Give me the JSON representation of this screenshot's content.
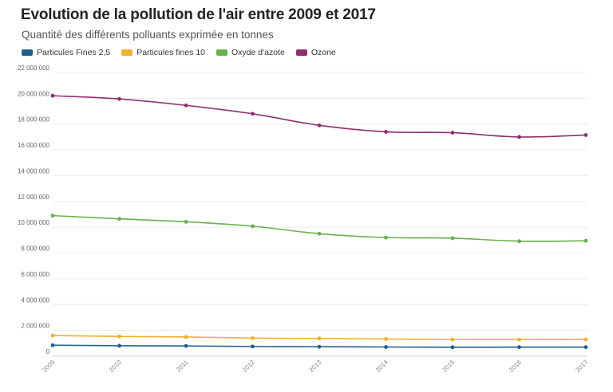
{
  "header": {
    "title": "Evolution de la pollution de l'air entre 2009 et 2017",
    "subtitle": "Quantité des différents polluants exprimée en tonnes"
  },
  "chart_data": {
    "type": "line",
    "title": "Evolution de la pollution de l'air entre 2009 et 2017",
    "subtitle": "Quantité des différents polluants exprimée en tonnes",
    "xlabel": "",
    "ylabel": "",
    "x": [
      "2009",
      "2010",
      "2011",
      "2012",
      "2013",
      "2014",
      "2015",
      "2016",
      "2017"
    ],
    "ylim": [
      0,
      22000000
    ],
    "yticks": [
      0,
      2000000,
      4000000,
      6000000,
      8000000,
      10000000,
      12000000,
      14000000,
      16000000,
      18000000,
      20000000,
      22000000
    ],
    "ytick_labels": [
      "0",
      "2 000 000",
      "4 000 000",
      "6 000 000",
      "8 000 000",
      "10 000 000",
      "12 000 000",
      "14 000 000",
      "16 000 000",
      "18 000 000",
      "20 000 000",
      "22 000 000"
    ],
    "grid": true,
    "legend_position": "top-left",
    "series": [
      {
        "name": "Particules Fines 2,5",
        "color": "#1f5f8b",
        "values": [
          850000,
          810000,
          790000,
          750000,
          730000,
          710000,
          690000,
          700000,
          700000
        ]
      },
      {
        "name": "Particules fines 10",
        "color": "#f0b030",
        "values": [
          1600000,
          1530000,
          1490000,
          1400000,
          1370000,
          1330000,
          1290000,
          1290000,
          1300000
        ]
      },
      {
        "name": "Oxyde d'azote",
        "color": "#6ab04c",
        "values": [
          10900000,
          10650000,
          10420000,
          10080000,
          9500000,
          9200000,
          9150000,
          8920000,
          8950000
        ]
      },
      {
        "name": "Ozone",
        "color": "#8e2f6e",
        "values": [
          20200000,
          19950000,
          19450000,
          18800000,
          17900000,
          17400000,
          17330000,
          17000000,
          17150000
        ]
      }
    ]
  }
}
